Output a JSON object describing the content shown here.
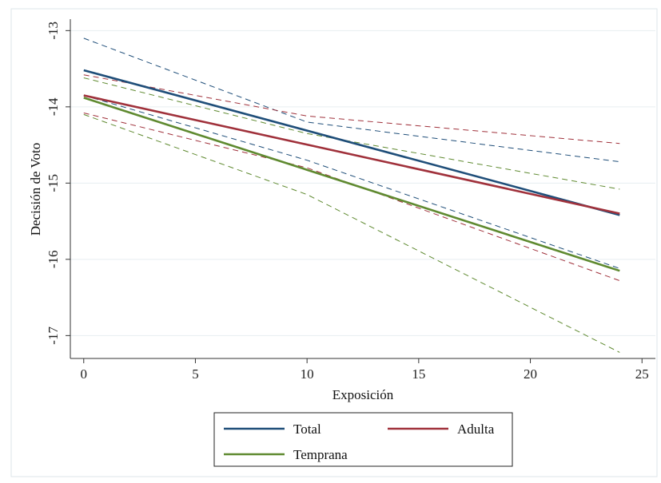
{
  "chart_data": {
    "type": "line",
    "xlabel": "Exposición",
    "ylabel": "Decisión de Voto",
    "xlim": [
      -0.6,
      25.6
    ],
    "ylim": [
      -17.3,
      -12.85
    ],
    "xticks": [
      0,
      5,
      10,
      15,
      20,
      25
    ],
    "yticks": [
      -13,
      -14,
      -15,
      -16,
      -17
    ],
    "xtick_labels": [
      "0",
      "5",
      "10",
      "15",
      "20",
      "25"
    ],
    "ytick_labels": [
      "-13",
      "-14",
      "-15",
      "-16",
      "-17"
    ],
    "grid": "horizontal",
    "legend_position": "bottom",
    "series": [
      {
        "name": "Total",
        "color": "#1f4e79",
        "fit": [
          [
            0,
            -13.52
          ],
          [
            24,
            -15.42
          ]
        ],
        "ci_upper": [
          [
            0,
            -13.1
          ],
          [
            10,
            -14.2
          ],
          [
            24,
            -14.72
          ]
        ],
        "ci_lower": [
          [
            0,
            -13.85
          ],
          [
            10,
            -14.7
          ],
          [
            24,
            -16.12
          ]
        ]
      },
      {
        "name": "Adulta",
        "color": "#a0313b",
        "fit": [
          [
            0,
            -13.85
          ],
          [
            24,
            -15.4
          ]
        ],
        "ci_upper": [
          [
            0,
            -13.58
          ],
          [
            10,
            -14.12
          ],
          [
            24,
            -14.48
          ]
        ],
        "ci_lower": [
          [
            0,
            -14.08
          ],
          [
            10,
            -14.8
          ],
          [
            24,
            -16.28
          ]
        ]
      },
      {
        "name": "Temprana",
        "color": "#5f8a30",
        "fit": [
          [
            0,
            -13.88
          ],
          [
            24,
            -16.15
          ]
        ],
        "ci_upper": [
          [
            0,
            -13.62
          ],
          [
            10,
            -14.35
          ],
          [
            24,
            -15.08
          ]
        ],
        "ci_lower": [
          [
            0,
            -14.1
          ],
          [
            10,
            -15.15
          ],
          [
            24,
            -17.22
          ]
        ]
      }
    ]
  }
}
